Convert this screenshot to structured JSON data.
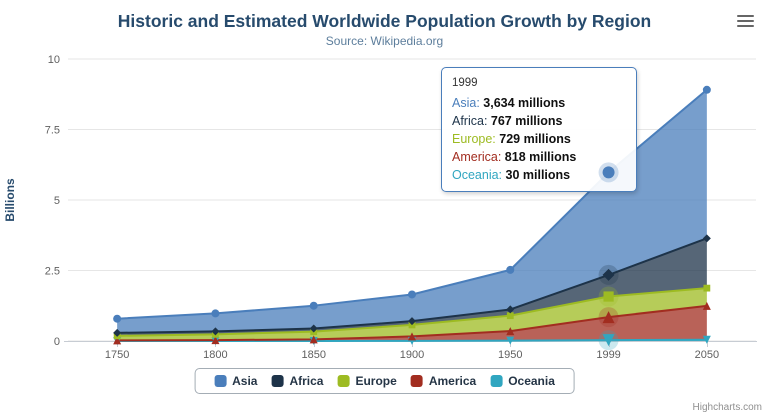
{
  "credits": "Highcharts.com",
  "tooltip": {
    "header": "1999",
    "rows": [
      {
        "name": "Asia",
        "value": "3,634 millions"
      },
      {
        "name": "Africa",
        "value": "767 millions"
      },
      {
        "name": "Europe",
        "value": "729 millions"
      },
      {
        "name": "America",
        "value": "818 millions"
      },
      {
        "name": "Oceania",
        "value": "30 millions"
      }
    ]
  },
  "chart_data": {
    "type": "area",
    "stacking": "normal",
    "title": "Historic and Estimated Worldwide Population Growth by Region",
    "subtitle": "Source: Wikipedia.org",
    "ylabel": "Billions",
    "xlabel": "",
    "unit": "millions",
    "ylim": [
      0,
      10
    ],
    "yticks": [
      0,
      2.5,
      5,
      7.5,
      10
    ],
    "grid": true,
    "legend_position": "bottom",
    "hover_category": "1999",
    "categories": [
      "1750",
      "1800",
      "1850",
      "1900",
      "1950",
      "1999",
      "2050"
    ],
    "series": [
      {
        "name": "Asia",
        "color": "#4a7ebb",
        "marker": "circle",
        "values": [
          502,
          635,
          809,
          947,
          1402,
          3634,
          5268
        ]
      },
      {
        "name": "Africa",
        "color": "#1d3349",
        "marker": "diamond",
        "values": [
          106,
          107,
          111,
          133,
          221,
          767,
          1766
        ]
      },
      {
        "name": "Europe",
        "color": "#9dbb22",
        "marker": "square",
        "values": [
          163,
          203,
          276,
          408,
          547,
          729,
          628
        ]
      },
      {
        "name": "America",
        "color": "#a22d20",
        "marker": "triangle",
        "values": [
          18,
          31,
          54,
          156,
          339,
          818,
          1201
        ]
      },
      {
        "name": "Oceania",
        "color": "#30a6c0",
        "marker": "triangle-down",
        "values": [
          2,
          2,
          2,
          6,
          13,
          30,
          46
        ]
      }
    ],
    "stack_order": [
      "Oceania",
      "America",
      "Europe",
      "Africa",
      "Asia"
    ]
  }
}
